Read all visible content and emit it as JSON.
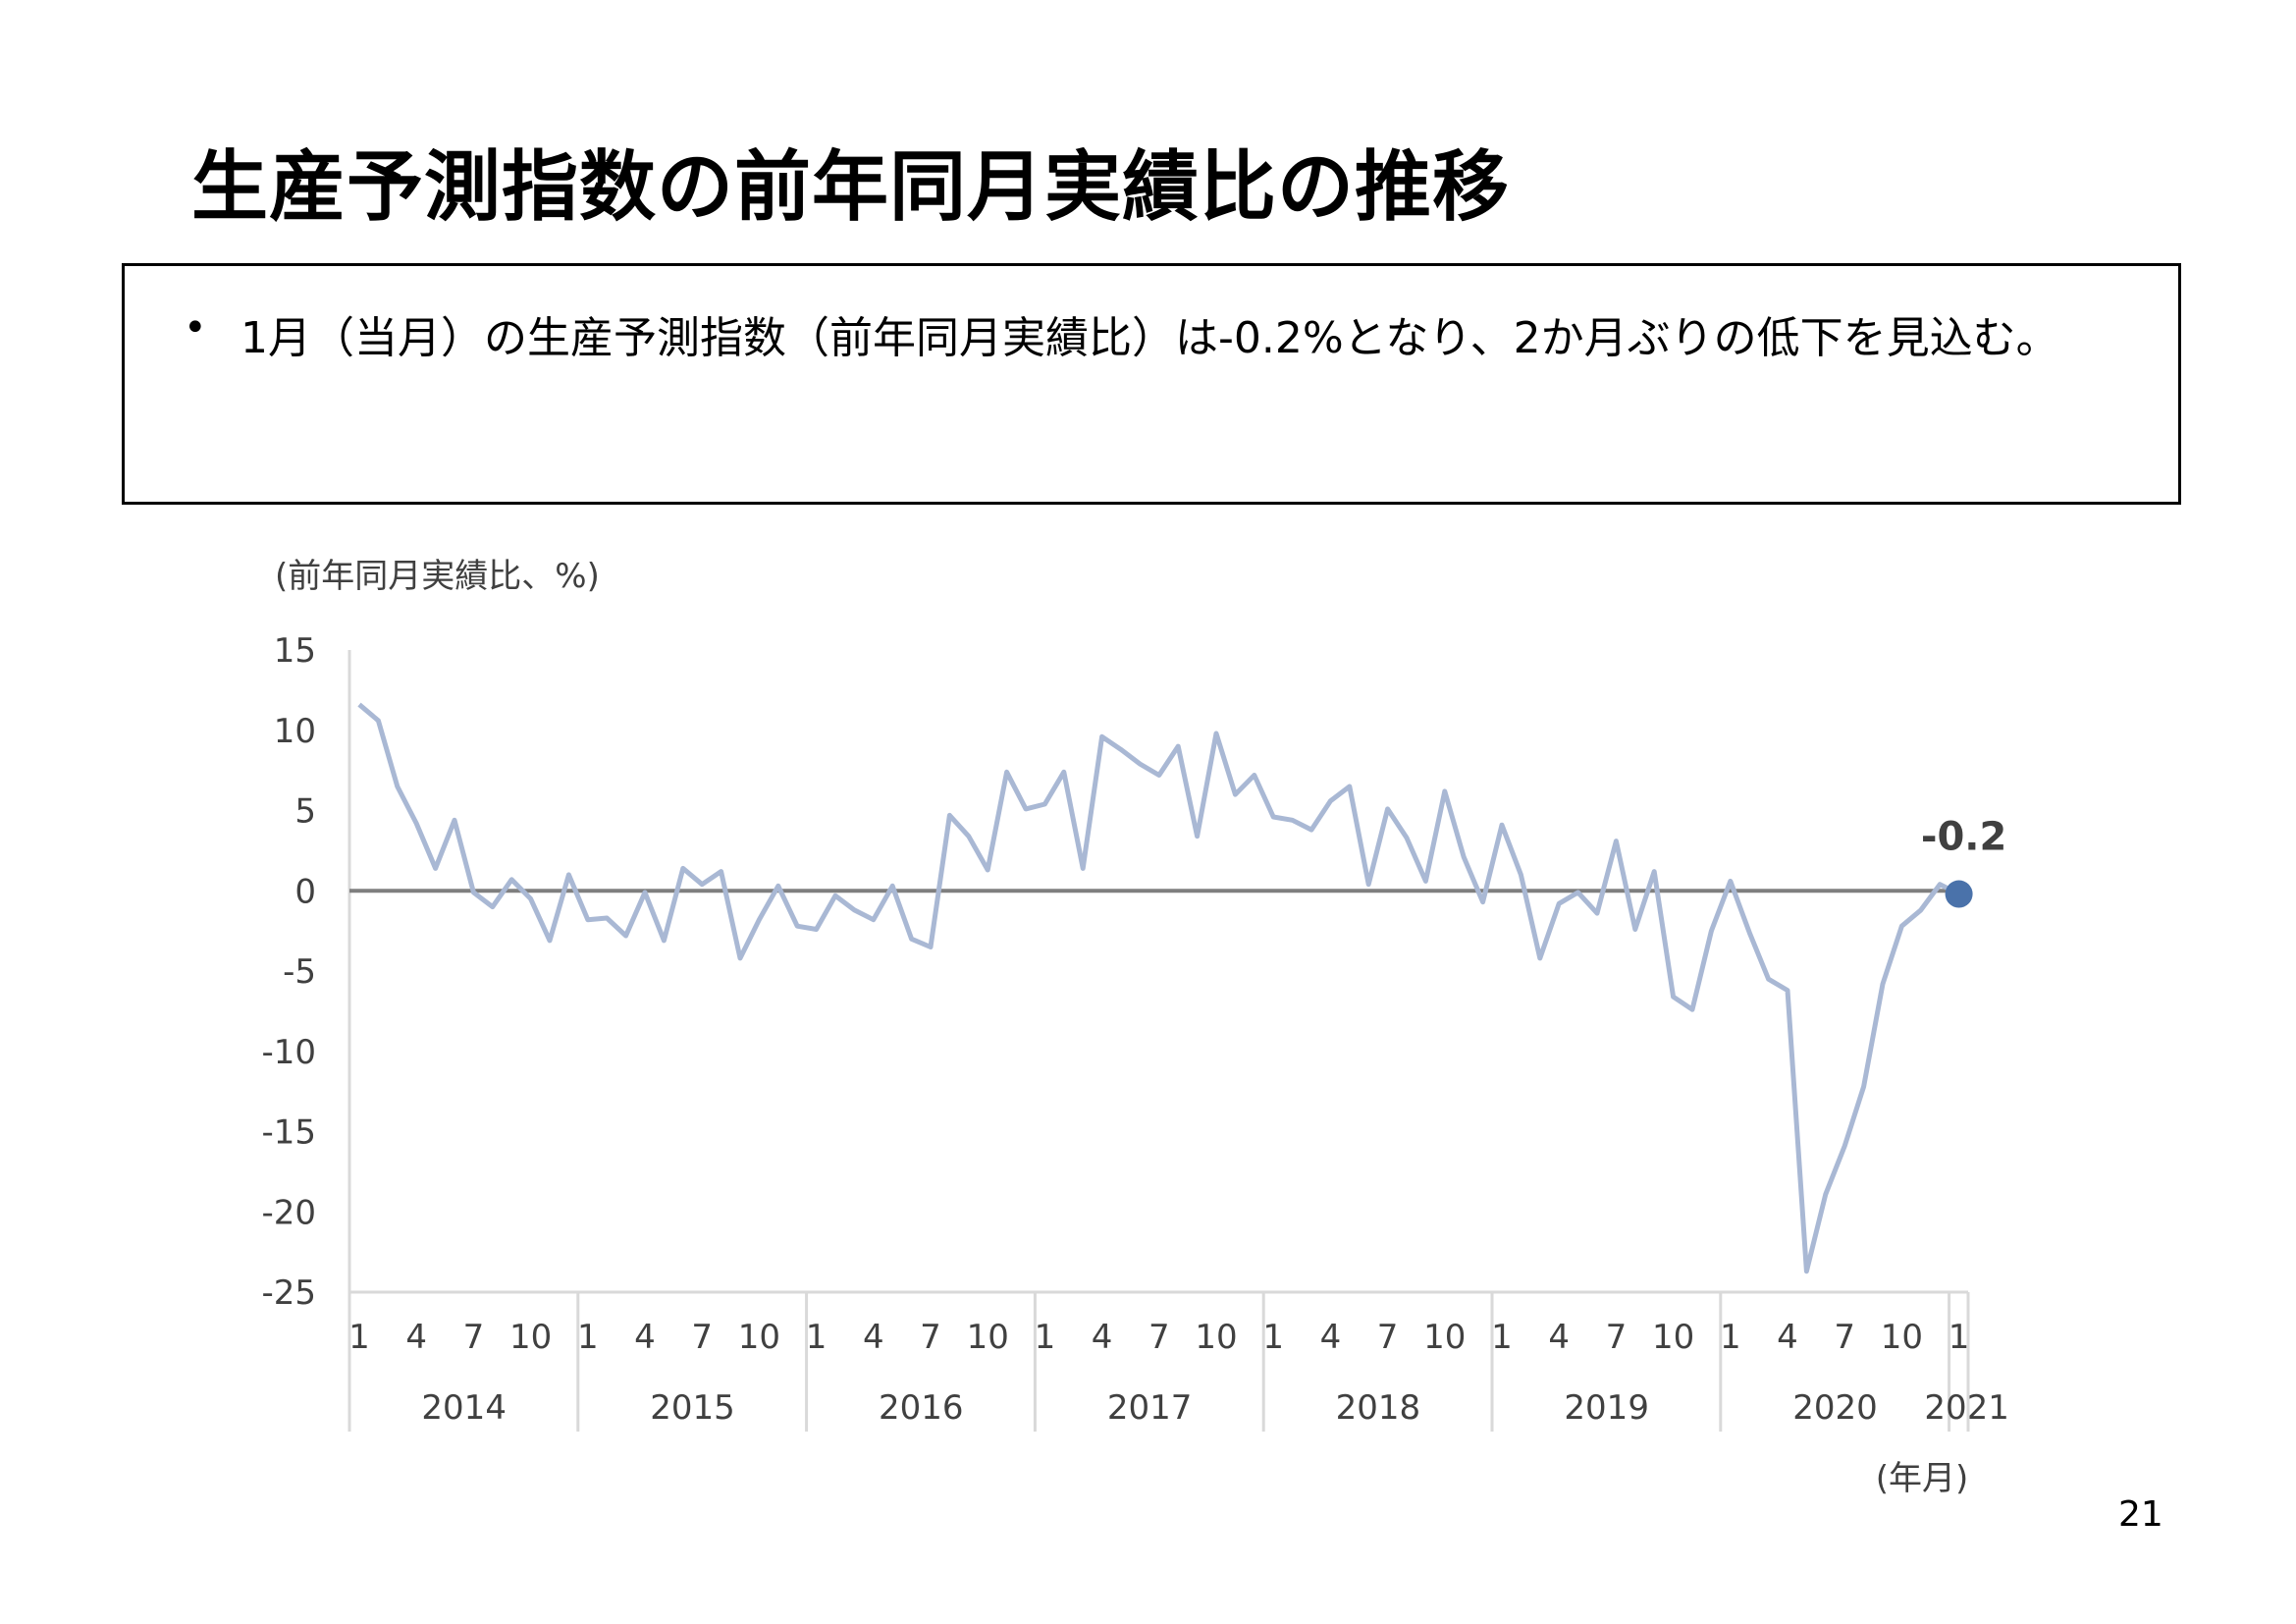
{
  "slide": {
    "title": "生産予測指数の前年同月実績比の推移",
    "bullet": "•",
    "summary": "1月（当月）の生産予測指数（前年同月実績比）は-0.2%となり、2か月ぶりの低下を見込む。",
    "page_number": "21"
  },
  "chart_data": {
    "type": "line",
    "ylabel": "(前年同月実績比、%)",
    "xlabel": "(年月)",
    "ylim": [
      -25,
      15
    ],
    "yticks": [
      "15",
      "10",
      "5",
      "0",
      "-5",
      "-10",
      "-15",
      "-20",
      "-25"
    ],
    "month_ticks": [
      "1",
      "4",
      "7",
      "10"
    ],
    "years": [
      "2014",
      "2015",
      "2016",
      "2017",
      "2018",
      "2019",
      "2020",
      "2021"
    ],
    "last_point_label": "-0.2",
    "colors": {
      "line": "#a9b8d4",
      "zero_line": "#7f7f7f",
      "marker": "#4a72aa",
      "axis": "#d9d9d9",
      "label": "#404040"
    },
    "series": [
      {
        "values": [
          11.6,
          10.6,
          6.5,
          4.2,
          1.4,
          4.4,
          -0.1,
          -1.0,
          0.7,
          -0.5,
          -3.1,
          1.0,
          -1.8,
          -1.7,
          -2.8,
          -0.1,
          -3.1,
          1.4,
          0.4,
          1.2,
          -4.2,
          -1.8,
          0.3,
          -2.2,
          -2.4,
          -0.3,
          -1.2,
          -1.8,
          0.3,
          -3.0,
          -3.5,
          4.7,
          3.4,
          1.3,
          7.4,
          5.1,
          5.4,
          7.4,
          1.4,
          9.6,
          8.8,
          7.9,
          7.2,
          9.0,
          3.4,
          9.8,
          6.0,
          7.2,
          4.6,
          4.4,
          3.8,
          5.6,
          6.5,
          0.4,
          5.1,
          3.3,
          0.6,
          6.2,
          2.1,
          -0.7,
          4.1,
          1.0,
          -4.2,
          -0.8,
          -0.1,
          -1.4,
          3.1,
          -2.4,
          1.2,
          -6.6,
          -7.4,
          -2.5,
          0.6,
          -2.6,
          -5.5,
          -6.2,
          -23.7,
          -18.9,
          -15.9,
          -12.2,
          -5.8,
          -2.2,
          -1.2,
          0.4,
          -0.2
        ]
      }
    ]
  }
}
